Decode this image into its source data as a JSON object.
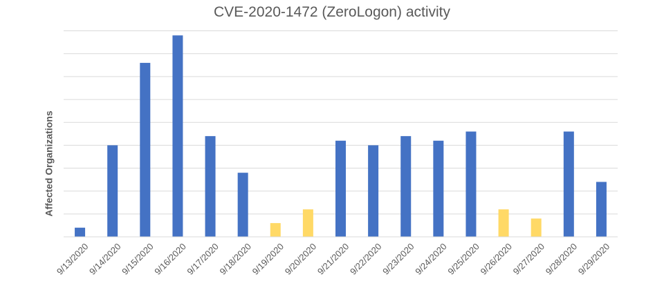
{
  "chart_data": {
    "type": "bar",
    "title": "CVE-2020-1472 (ZeroLogon) activity",
    "xlabel": "",
    "ylabel": "Affected Organizations",
    "categories": [
      "9/13/2020",
      "9/14/2020",
      "9/15/2020",
      "9/16/2020",
      "9/17/2020",
      "9/18/2020",
      "9/19/2020",
      "9/20/2020",
      "9/21/2020",
      "9/22/2020",
      "9/23/2020",
      "9/24/2020",
      "9/25/2020",
      "9/26/2020",
      "9/27/2020",
      "9/28/2020",
      "9/29/2020"
    ],
    "values": [
      2,
      20,
      38,
      44,
      22,
      14,
      3,
      6,
      21,
      20,
      22,
      21,
      23,
      6,
      4,
      23,
      12
    ],
    "colors": [
      "#4472C4",
      "#4472C4",
      "#4472C4",
      "#4472C4",
      "#4472C4",
      "#4472C4",
      "#FFD966",
      "#FFD966",
      "#4472C4",
      "#4472C4",
      "#4472C4",
      "#4472C4",
      "#4472C4",
      "#FFD966",
      "#FFD966",
      "#4472C4",
      "#4472C4"
    ],
    "ylim": [
      0,
      46
    ],
    "y_tick_step": 5,
    "y_tick_labels_shown": false,
    "grid": true,
    "legend": "none"
  }
}
